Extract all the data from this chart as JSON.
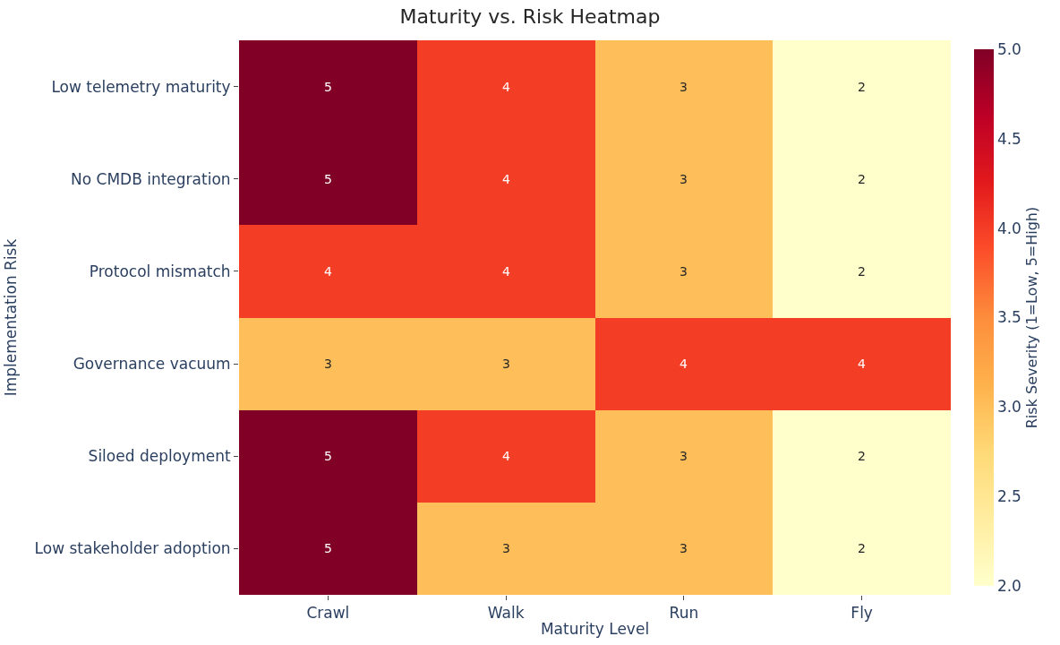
{
  "chart_data": {
    "type": "heatmap",
    "title": "Maturity vs. Risk Heatmap",
    "xlabel": "Maturity Level",
    "ylabel": "Implementation Risk",
    "clabel": "Risk Severity (1=Low, 5=High)",
    "categories": [
      "Crawl",
      "Walk",
      "Run",
      "Fly"
    ],
    "y_categories": [
      "Low telemetry maturity",
      "No CMDB integration",
      "Protocol mismatch",
      "Governance vacuum",
      "Siloed deployment",
      "Low stakeholder adoption"
    ],
    "cells": [
      [
        5,
        4,
        3,
        2
      ],
      [
        5,
        4,
        3,
        2
      ],
      [
        4,
        4,
        3,
        2
      ],
      [
        3,
        3,
        4,
        4
      ],
      [
        5,
        4,
        3,
        2
      ],
      [
        5,
        3,
        3,
        2
      ]
    ],
    "clim": [
      2,
      5
    ],
    "cticks": [
      {
        "value": 2,
        "label": "2.0"
      },
      {
        "value": 2.5,
        "label": "2.5"
      },
      {
        "value": 3,
        "label": "3.0"
      },
      {
        "value": 3.5,
        "label": "3.5"
      },
      {
        "value": 4,
        "label": "4.0"
      },
      {
        "value": 4.5,
        "label": "4.5"
      },
      {
        "value": 5,
        "label": "5.0"
      }
    ],
    "data_labels": true
  }
}
